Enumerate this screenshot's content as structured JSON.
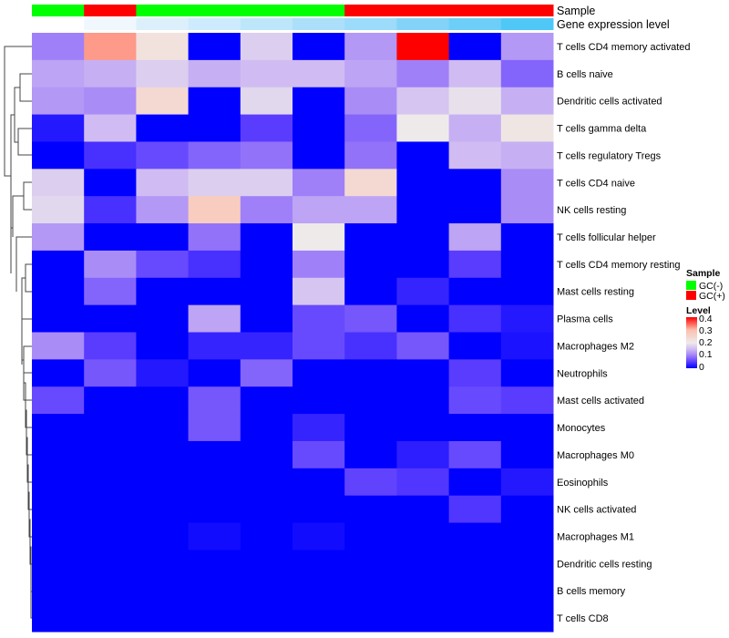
{
  "chart_data": {
    "type": "heatmap",
    "title": "",
    "columns": 10,
    "rows": [
      "T cells CD4 memory activated",
      "B cells naive",
      "Dendritic cells activated",
      "T cells gamma delta",
      "T cells regulatory  Tregs",
      "T cells CD4 naive",
      "NK cells resting",
      "T cells follicular helper",
      "T cells CD4 memory resting",
      "Mast cells resting",
      "Plasma cells",
      "Macrophages M2",
      "Neutrophils",
      "Mast cells activated",
      "Monocytes",
      "Macrophages M0",
      "Eosinophils",
      "NK cells activated",
      "Macrophages M1",
      "Dendritic cells resting",
      "B cells memory",
      "T cells CD8"
    ],
    "values": [
      [
        0.1,
        0.32,
        0.22,
        0,
        0.17,
        0,
        0.12,
        0.4,
        0,
        0.12
      ],
      [
        0.13,
        0.14,
        0.17,
        0.14,
        0.15,
        0.15,
        0.13,
        0.1,
        0.15,
        0.08
      ],
      [
        0.12,
        0.11,
        0.24,
        0,
        0.18,
        0,
        0.11,
        0.16,
        0.19,
        0.14
      ],
      [
        0.02,
        0.15,
        0,
        0,
        0.05,
        0,
        0.08,
        0.2,
        0.14,
        0.21
      ],
      [
        0,
        0.04,
        0.06,
        0.08,
        0.09,
        0,
        0.09,
        0,
        0.15,
        0.14
      ],
      [
        0.17,
        0,
        0.15,
        0.17,
        0.17,
        0.1,
        0.24,
        0,
        0,
        0.11
      ],
      [
        0.18,
        0.04,
        0.12,
        0.27,
        0.1,
        0.13,
        0.13,
        0,
        0,
        0.11
      ],
      [
        0.12,
        0,
        0,
        0.09,
        0,
        0.2,
        0,
        0,
        0.13,
        0
      ],
      [
        0,
        0.11,
        0.06,
        0.04,
        0,
        0.1,
        0,
        0,
        0.05,
        0
      ],
      [
        0,
        0.08,
        0,
        0,
        0,
        0.16,
        0,
        0.03,
        0,
        0
      ],
      [
        0,
        0,
        0,
        0.13,
        0,
        0.06,
        0.07,
        0,
        0.04,
        0.02
      ],
      [
        0.11,
        0.05,
        0,
        0.03,
        0.03,
        0.06,
        0.04,
        0.07,
        0,
        0.015
      ],
      [
        0,
        0.07,
        0.02,
        0,
        0.08,
        0,
        0,
        0,
        0.05,
        0
      ],
      [
        0.06,
        0,
        0,
        0.07,
        0,
        0,
        0,
        0,
        0.06,
        0.05
      ],
      [
        0,
        0,
        0,
        0.07,
        0,
        0.03,
        0,
        0,
        0,
        0
      ],
      [
        0,
        0,
        0,
        0,
        0,
        0.06,
        0,
        0.025,
        0.06,
        0
      ],
      [
        0,
        0,
        0,
        0,
        0,
        0,
        0.055,
        0.045,
        0,
        0.02
      ],
      [
        0,
        0,
        0,
        0,
        0,
        0,
        0,
        0,
        0.045,
        0
      ],
      [
        0,
        0,
        0,
        0.01,
        0,
        0.01,
        0,
        0,
        0,
        0
      ],
      [
        0,
        0,
        0,
        0,
        0,
        0,
        0,
        0,
        0,
        0
      ],
      [
        0,
        0,
        0,
        0,
        0,
        0,
        0,
        0,
        0,
        0
      ],
      [
        0,
        0,
        0,
        0,
        0,
        0,
        0,
        0,
        0,
        0
      ]
    ],
    "annotations": {
      "sample": {
        "label": "Sample",
        "values": [
          "GC(-)",
          "GC(+)",
          "GC(-)",
          "GC(-)",
          "GC(-)",
          "GC(-)",
          "GC(+)",
          "GC(+)",
          "GC(+)",
          "GC(+)"
        ]
      },
      "gene_level": {
        "label": "Gene expression level",
        "colors": [
          "#ffffff",
          "#f0f8fe",
          "#dcf0fc",
          "#cdebfc",
          "#bde6fb",
          "#acdff9",
          "#9cdbfa",
          "#83d3f8",
          "#6dcef8",
          "#4fc8f8"
        ]
      }
    },
    "legend": {
      "sample_title": "Sample",
      "sample_entries": [
        {
          "label": "GC(-)",
          "color": "#00ff00"
        },
        {
          "label": "GC(+)",
          "color": "#ff0000"
        }
      ],
      "level_title": "Level",
      "level_ticks": [
        "0.4",
        "0.3",
        "0.2",
        "0.1",
        "0"
      ],
      "range": [
        0,
        0.4
      ],
      "color_stops": [
        {
          "v": 0,
          "c": "#0000ff"
        },
        {
          "v": 0.05,
          "c": "#5a3cff"
        },
        {
          "v": 0.1,
          "c": "#a080f8"
        },
        {
          "v": 0.15,
          "c": "#d0bcf2"
        },
        {
          "v": 0.2,
          "c": "#eeeaea"
        },
        {
          "v": 0.3,
          "c": "#fcc0ad"
        },
        {
          "v": 0.4,
          "c": "#ff0000"
        }
      ],
      "placement": "right"
    }
  }
}
